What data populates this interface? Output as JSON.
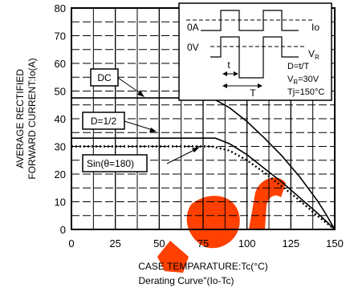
{
  "chart_data": {
    "type": "line",
    "xlabel": "CASE TEMPARATURE:Tc(°C)",
    "ylabel_line1": "AVERAGE RECTIFIED",
    "ylabel_line2": "FORWARD CURRENT:Io(A)",
    "caption": "Derating Curve\"(Io-Tc)",
    "xlim": [
      0,
      150
    ],
    "ylim": [
      0,
      80
    ],
    "xticks": [
      0,
      25,
      50,
      75,
      100,
      125,
      150
    ],
    "yticks": [
      0,
      10,
      20,
      30,
      40,
      50,
      60,
      70,
      80
    ],
    "grid": true,
    "series": [
      {
        "name": "DC",
        "style": "solid",
        "x": [
          0,
          80,
          90,
          100,
          110,
          120,
          130,
          140,
          145,
          150
        ],
        "y": [
          47.5,
          47.5,
          44,
          39,
          33,
          26.5,
          19,
          10.5,
          5.5,
          0
        ]
      },
      {
        "name": "D=1/2",
        "style": "solid",
        "x": [
          0,
          82,
          90,
          100,
          110,
          120,
          130,
          140,
          145,
          150
        ],
        "y": [
          33,
          33,
          31,
          27,
          22,
          17,
          11.5,
          6,
          3,
          0
        ]
      },
      {
        "name": "Sin(θ=180)",
        "style": "dotted",
        "x": [
          0,
          80,
          90,
          100,
          110,
          120,
          130,
          140,
          145,
          150
        ],
        "y": [
          30,
          30,
          28.5,
          25,
          20.5,
          15.5,
          10.5,
          5,
          2.5,
          0
        ]
      }
    ],
    "annotations": {
      "dc": "DC",
      "half": "D=1/2",
      "sin_prefix": "Sin(",
      "sin_theta": "θ",
      "sin_suffix": "=180)"
    },
    "inset": {
      "io": "Io",
      "zero_a": "0A",
      "zero_v": "0V",
      "vr_main": "V",
      "vr_sub": "R",
      "t_small": "t",
      "t_big": "T",
      "duty": "D=t/T",
      "vr_val_main": "V",
      "vr_val_sub": "R",
      "vr_val_rest": "=30V",
      "tj": "Tj=150°C"
    },
    "colors": {
      "line": "#000000",
      "background": "#ffffff",
      "watermark": "#ff4000"
    }
  }
}
